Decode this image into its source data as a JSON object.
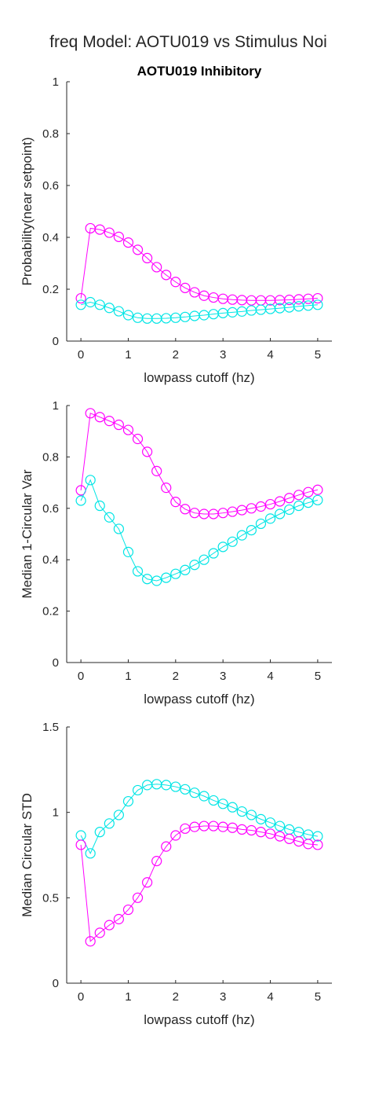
{
  "figure": {
    "suptitle": "freq Model: AOTU019 vs Stimulus Noi"
  },
  "colors": {
    "magenta": "#ff00ff",
    "cyan": "#00e5e5",
    "axis": "#262626"
  },
  "chart_data": [
    {
      "type": "line",
      "title": "AOTU019 Inhibitory",
      "xlabel": "lowpass cutoff (hz)",
      "ylabel": "Probability(near setpoint)",
      "xlim": [
        -0.3,
        5.3
      ],
      "ylim": [
        0,
        1
      ],
      "xticks": [
        0,
        1,
        2,
        3,
        4,
        5
      ],
      "yticks": [
        0,
        0.2,
        0.4,
        0.6,
        0.8,
        1
      ],
      "ytick_labels": [
        "0",
        "0.2",
        "0.4",
        "0.6",
        "0.8",
        "1"
      ],
      "x": [
        0,
        0.2,
        0.4,
        0.6,
        0.8,
        1.0,
        1.2,
        1.4,
        1.6,
        1.8,
        2.0,
        2.2,
        2.4,
        2.6,
        2.8,
        3.0,
        3.2,
        3.4,
        3.6,
        3.8,
        4.0,
        4.2,
        4.4,
        4.6,
        4.8,
        5.0
      ],
      "series": [
        {
          "color": "magenta",
          "values": [
            0.165,
            0.435,
            0.43,
            0.418,
            0.402,
            0.38,
            0.352,
            0.32,
            0.285,
            0.255,
            0.228,
            0.205,
            0.188,
            0.175,
            0.168,
            0.163,
            0.16,
            0.158,
            0.157,
            0.157,
            0.157,
            0.158,
            0.159,
            0.161,
            0.163,
            0.165
          ]
        },
        {
          "color": "cyan",
          "values": [
            0.14,
            0.15,
            0.14,
            0.128,
            0.115,
            0.1,
            0.09,
            0.087,
            0.087,
            0.088,
            0.09,
            0.093,
            0.097,
            0.1,
            0.104,
            0.108,
            0.111,
            0.114,
            0.118,
            0.121,
            0.124,
            0.127,
            0.13,
            0.134,
            0.137,
            0.14
          ]
        }
      ]
    },
    {
      "type": "line",
      "title": "",
      "xlabel": "lowpass cutoff (hz)",
      "ylabel": "Median 1-Circular Var",
      "xlim": [
        -0.3,
        5.3
      ],
      "ylim": [
        0,
        1
      ],
      "xticks": [
        0,
        1,
        2,
        3,
        4,
        5
      ],
      "yticks": [
        0,
        0.2,
        0.4,
        0.6,
        0.8,
        1
      ],
      "ytick_labels": [
        "0",
        "0.2",
        "0.4",
        "0.6",
        "0.8",
        "1"
      ],
      "x": [
        0,
        0.2,
        0.4,
        0.6,
        0.8,
        1.0,
        1.2,
        1.4,
        1.6,
        1.8,
        2.0,
        2.2,
        2.4,
        2.6,
        2.8,
        3.0,
        3.2,
        3.4,
        3.6,
        3.8,
        4.0,
        4.2,
        4.4,
        4.6,
        4.8,
        5.0
      ],
      "series": [
        {
          "color": "magenta",
          "values": [
            0.67,
            0.97,
            0.955,
            0.94,
            0.925,
            0.905,
            0.87,
            0.82,
            0.745,
            0.68,
            0.625,
            0.597,
            0.582,
            0.578,
            0.578,
            0.582,
            0.587,
            0.593,
            0.6,
            0.607,
            0.616,
            0.627,
            0.64,
            0.652,
            0.663,
            0.672
          ]
        },
        {
          "color": "cyan",
          "values": [
            0.63,
            0.71,
            0.61,
            0.565,
            0.52,
            0.43,
            0.355,
            0.325,
            0.318,
            0.33,
            0.345,
            0.36,
            0.38,
            0.4,
            0.425,
            0.45,
            0.47,
            0.495,
            0.515,
            0.54,
            0.56,
            0.578,
            0.595,
            0.61,
            0.622,
            0.632
          ]
        }
      ]
    },
    {
      "type": "line",
      "title": "",
      "xlabel": "lowpass cutoff (hz)",
      "ylabel": "Median Circular STD",
      "xlim": [
        -0.3,
        5.3
      ],
      "ylim": [
        0,
        1.5
      ],
      "xticks": [
        0,
        1,
        2,
        3,
        4,
        5
      ],
      "yticks": [
        0,
        0.5,
        1,
        1.5
      ],
      "ytick_labels": [
        "0",
        "0.5",
        "1",
        "1.5"
      ],
      "x": [
        0,
        0.2,
        0.4,
        0.6,
        0.8,
        1.0,
        1.2,
        1.4,
        1.6,
        1.8,
        2.0,
        2.2,
        2.4,
        2.6,
        2.8,
        3.0,
        3.2,
        3.4,
        3.6,
        3.8,
        4.0,
        4.2,
        4.4,
        4.6,
        4.8,
        5.0
      ],
      "series": [
        {
          "color": "cyan",
          "values": [
            0.865,
            0.76,
            0.885,
            0.935,
            0.985,
            1.065,
            1.13,
            1.16,
            1.165,
            1.16,
            1.15,
            1.135,
            1.115,
            1.095,
            1.07,
            1.05,
            1.03,
            1.005,
            0.985,
            0.96,
            0.94,
            0.92,
            0.9,
            0.885,
            0.87,
            0.86
          ]
        },
        {
          "color": "magenta",
          "values": [
            0.81,
            0.245,
            0.295,
            0.34,
            0.375,
            0.43,
            0.5,
            0.59,
            0.715,
            0.8,
            0.865,
            0.905,
            0.915,
            0.92,
            0.92,
            0.915,
            0.91,
            0.9,
            0.895,
            0.885,
            0.875,
            0.86,
            0.845,
            0.83,
            0.815,
            0.81
          ]
        }
      ]
    }
  ]
}
